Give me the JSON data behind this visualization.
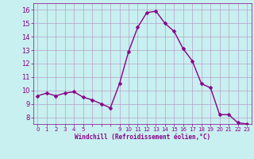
{
  "x": [
    0,
    1,
    2,
    3,
    4,
    5,
    6,
    7,
    8,
    9,
    10,
    11,
    12,
    13,
    14,
    15,
    16,
    17,
    18,
    19,
    20,
    21,
    22,
    23
  ],
  "y": [
    9.6,
    9.8,
    9.6,
    9.8,
    9.9,
    9.5,
    9.3,
    9.0,
    8.7,
    10.5,
    12.9,
    14.7,
    15.8,
    15.9,
    15.0,
    14.4,
    13.1,
    12.2,
    10.5,
    10.2,
    8.2,
    8.2,
    7.6,
    7.5
  ],
  "line_color": "#880088",
  "marker_color": "#880088",
  "bg_color": "#c8f0f0",
  "grid_color": "#b8a0c8",
  "xlabel": "Windchill (Refroidissement éolien,°C)",
  "xlabel_color": "#880088",
  "tick_color": "#880088",
  "ylim": [
    7.5,
    16.5
  ],
  "xlim": [
    -0.5,
    23.5
  ],
  "yticks": [
    8,
    9,
    10,
    11,
    12,
    13,
    14,
    15,
    16
  ],
  "xtick_labels": [
    "0",
    "1",
    "2",
    "3",
    "4",
    "5",
    "",
    "",
    "",
    "9",
    "10",
    "11",
    "12",
    "13",
    "14",
    "15",
    "16",
    "17",
    "18",
    "19",
    "20",
    "21",
    "22",
    "23"
  ],
  "xticks_all": [
    0,
    1,
    2,
    3,
    4,
    5,
    6,
    7,
    8,
    9,
    10,
    11,
    12,
    13,
    14,
    15,
    16,
    17,
    18,
    19,
    20,
    21,
    22,
    23
  ],
  "marker_size": 2.5,
  "line_width": 1.0
}
